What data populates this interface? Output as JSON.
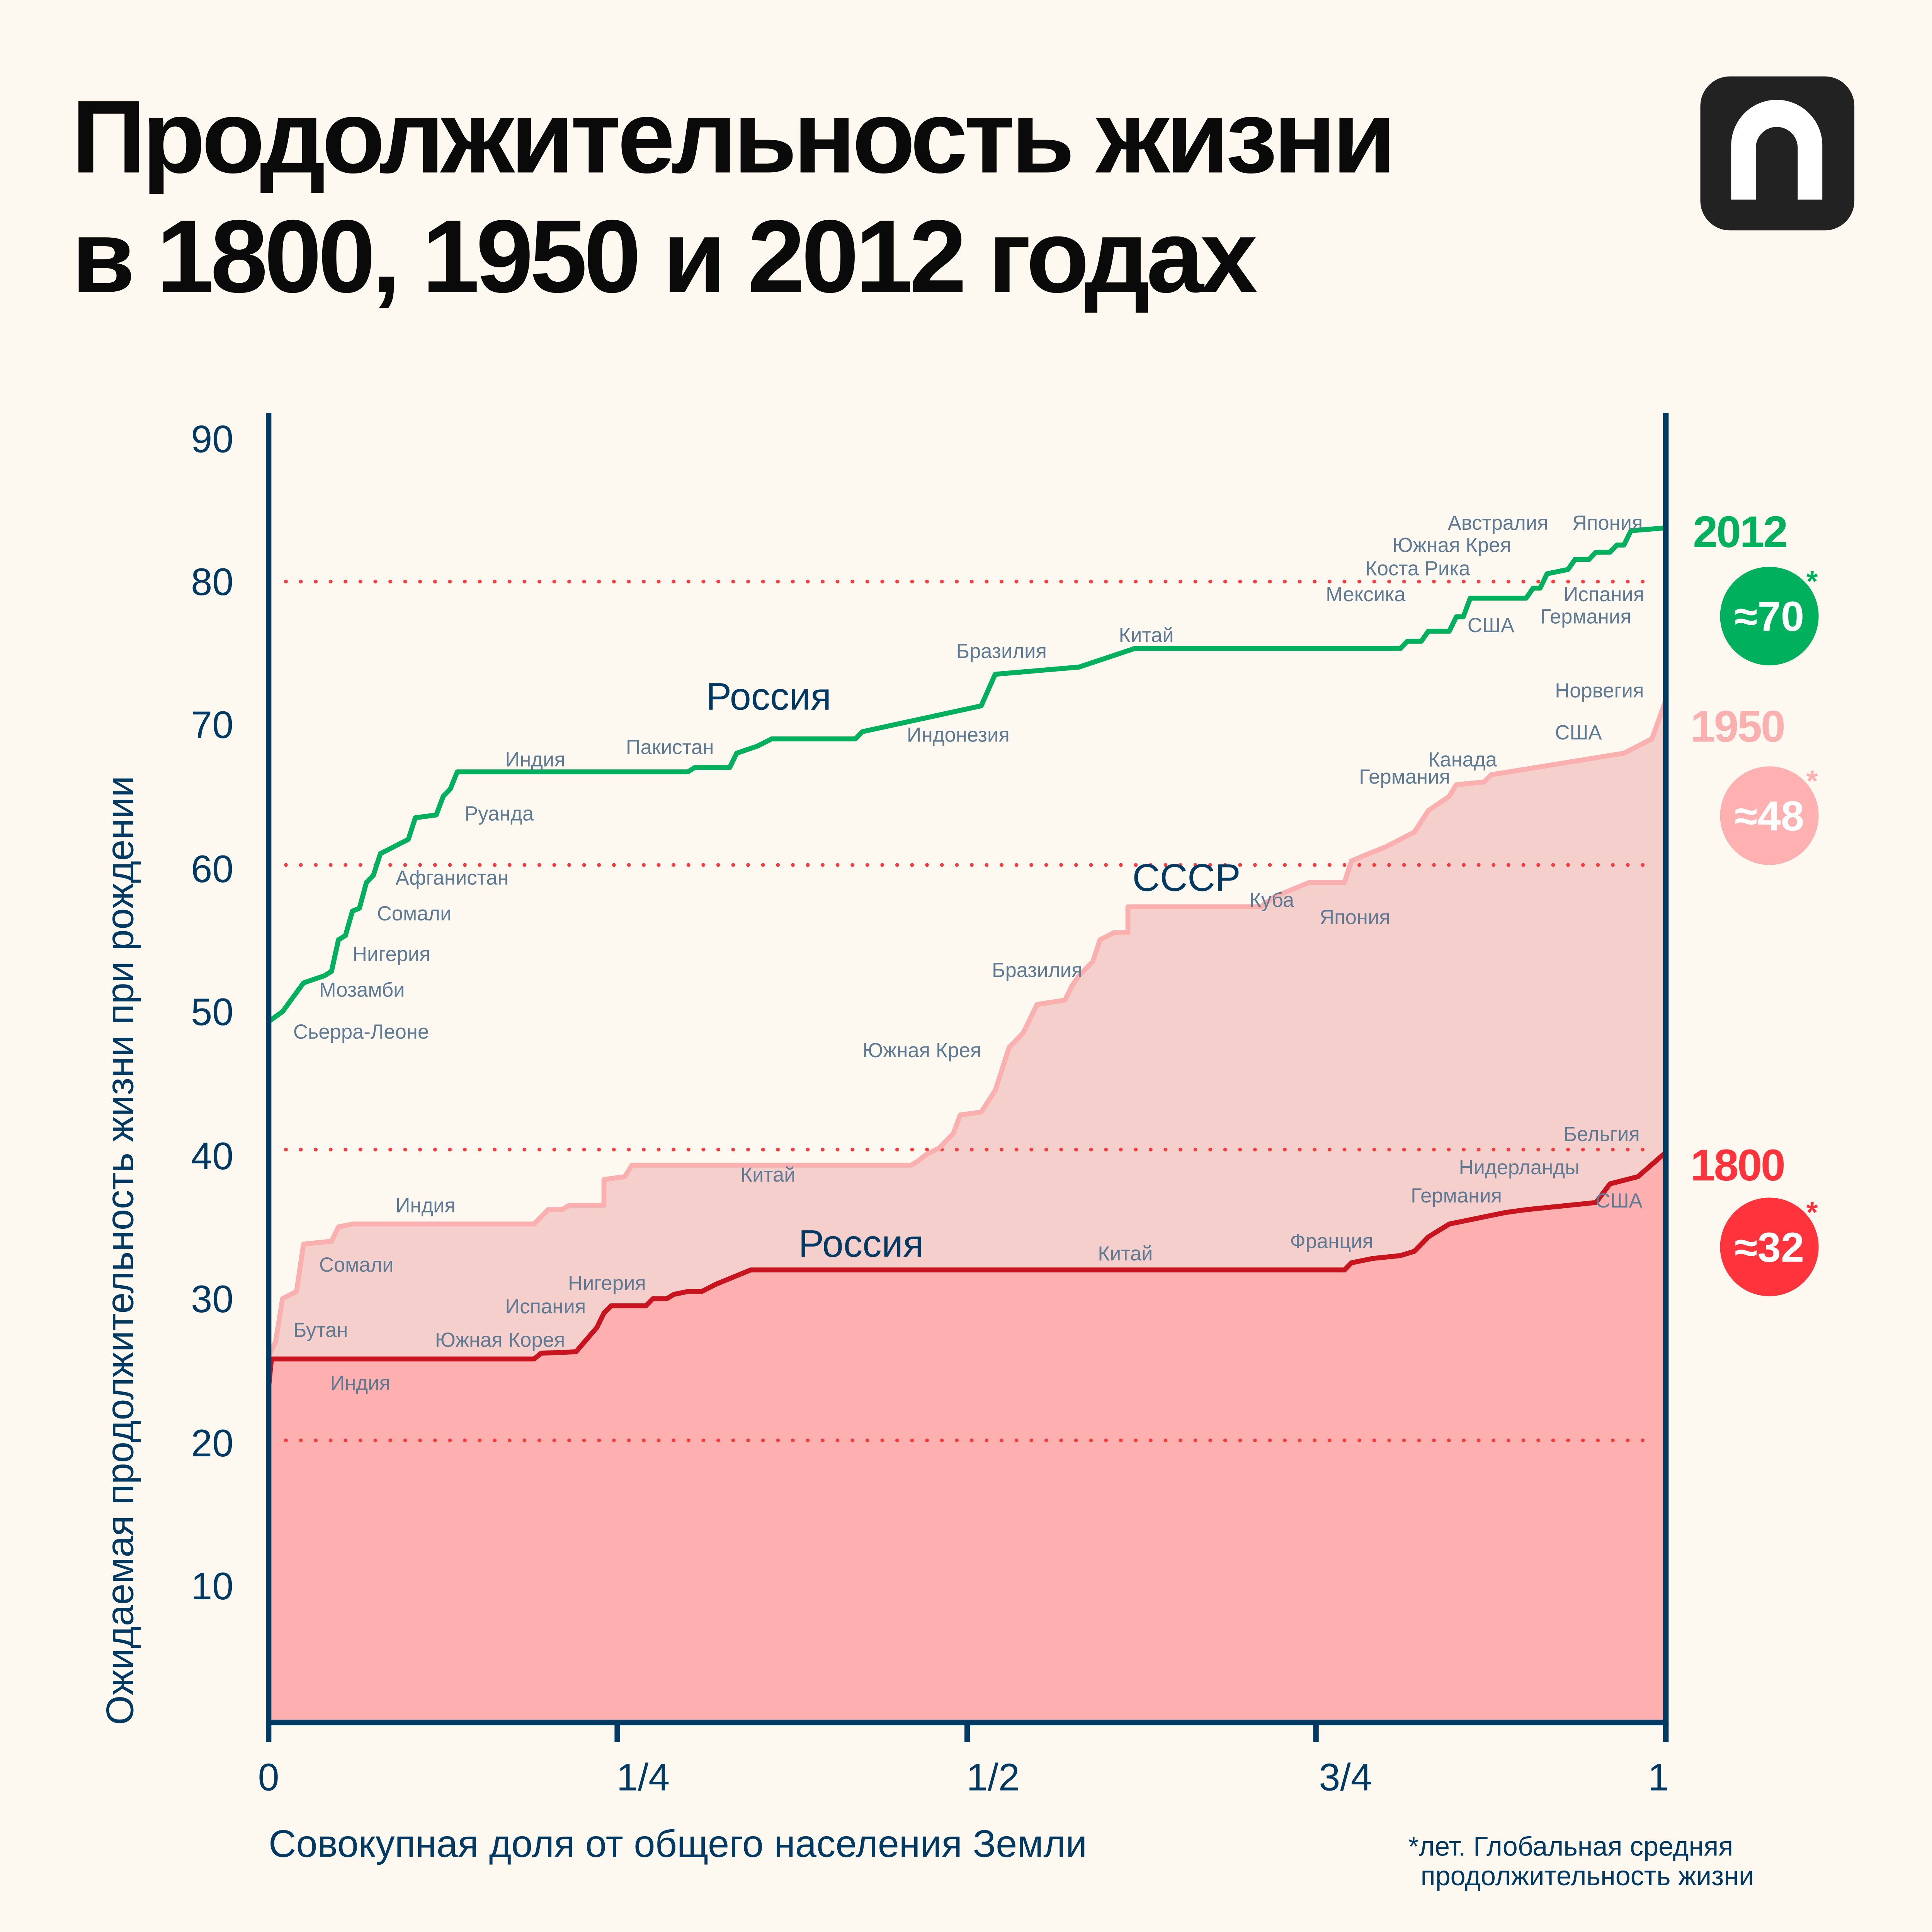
{
  "title": {
    "line1": "Продолжительность жизни",
    "line2": "в 1800, 1950 и 2012 годах"
  },
  "logo": {
    "name": "n-logo-icon",
    "bg": "#222222"
  },
  "chart_data": {
    "type": "line",
    "xlabel": "Совокупная доля от общего населения Земли",
    "ylabel": "Ожидаемая продолжительность жизни при рождении",
    "xlim": [
      0,
      1
    ],
    "ylim": [
      0,
      90
    ],
    "x_ticks": [
      "0",
      "1/4",
      "1/2",
      "3/4",
      "1"
    ],
    "y_ticks": [
      "10",
      "20",
      "30",
      "40",
      "50",
      "60",
      "70",
      "80",
      "90"
    ],
    "grid": "dotted horizontal at 20, 40, 60, 80",
    "series": [
      {
        "name": "2012",
        "color": "#00b05c",
        "average": "≈70",
        "points": [
          [
            0,
            49.3
          ],
          [
            0.01,
            50
          ],
          [
            0.025,
            52
          ],
          [
            0.04,
            52.5
          ],
          [
            0.045,
            52.8
          ],
          [
            0.05,
            55
          ],
          [
            0.055,
            55.3
          ],
          [
            0.06,
            57
          ],
          [
            0.065,
            57.2
          ],
          [
            0.07,
            59
          ],
          [
            0.075,
            59.5
          ],
          [
            0.08,
            61
          ],
          [
            0.09,
            61.5
          ],
          [
            0.1,
            62
          ],
          [
            0.105,
            63.5
          ],
          [
            0.12,
            63.7
          ],
          [
            0.125,
            65
          ],
          [
            0.13,
            65.5
          ],
          [
            0.135,
            66.7
          ],
          [
            0.3,
            66.7
          ],
          [
            0.305,
            67
          ],
          [
            0.33,
            67
          ],
          [
            0.335,
            68
          ],
          [
            0.35,
            68.5
          ],
          [
            0.36,
            69
          ],
          [
            0.42,
            69
          ],
          [
            0.425,
            69.5
          ],
          [
            0.51,
            71.3
          ],
          [
            0.52,
            73.5
          ],
          [
            0.58,
            74
          ],
          [
            0.62,
            75.3
          ],
          [
            0.81,
            75.3
          ],
          [
            0.815,
            75.8
          ],
          [
            0.825,
            75.8
          ],
          [
            0.83,
            76.5
          ],
          [
            0.845,
            76.5
          ],
          [
            0.85,
            77.5
          ],
          [
            0.855,
            77.5
          ],
          [
            0.86,
            78.8
          ],
          [
            0.9,
            78.8
          ],
          [
            0.905,
            79.5
          ],
          [
            0.91,
            79.5
          ],
          [
            0.915,
            80.5
          ],
          [
            0.93,
            80.8
          ],
          [
            0.935,
            81.5
          ],
          [
            0.945,
            81.5
          ],
          [
            0.95,
            82
          ],
          [
            0.96,
            82
          ],
          [
            0.965,
            82.5
          ],
          [
            0.97,
            82.5
          ],
          [
            0.975,
            83.5
          ],
          [
            1,
            83.7
          ]
        ],
        "labels": [
          "Сьерра-Леоне",
          "Мозамби",
          "Нигерия",
          "Сомали",
          "Афганистан",
          "Руанда",
          "Индия",
          "Пакистан",
          "Россия",
          "Индонезия",
          "Бразилия",
          "Китай",
          "Мексика",
          "Коста Рика",
          "Южная Крея",
          "Австралия",
          "Япония",
          "США",
          "Испания",
          "Германия"
        ]
      },
      {
        "name": "1950",
        "color": "#fbb0b0",
        "fill": "#f5cfcb",
        "average": "≈48",
        "points": [
          [
            0,
            26
          ],
          [
            0.005,
            27
          ],
          [
            0.01,
            30
          ],
          [
            0.02,
            30.5
          ],
          [
            0.025,
            33.8
          ],
          [
            0.045,
            34
          ],
          [
            0.05,
            35
          ],
          [
            0.06,
            35.2
          ],
          [
            0.19,
            35.2
          ],
          [
            0.2,
            36.2
          ],
          [
            0.21,
            36.2
          ],
          [
            0.215,
            36.5
          ],
          [
            0.24,
            36.5
          ],
          [
            0.24,
            38.3
          ],
          [
            0.255,
            38.5
          ],
          [
            0.26,
            39.3
          ],
          [
            0.46,
            39.3
          ],
          [
            0.465,
            39.6
          ],
          [
            0.47,
            40
          ],
          [
            0.48,
            40.5
          ],
          [
            0.49,
            41.5
          ],
          [
            0.495,
            42.8
          ],
          [
            0.51,
            43
          ],
          [
            0.52,
            44.5
          ],
          [
            0.525,
            46
          ],
          [
            0.53,
            47.5
          ],
          [
            0.54,
            48.5
          ],
          [
            0.55,
            50.5
          ],
          [
            0.57,
            50.8
          ],
          [
            0.575,
            51.8
          ],
          [
            0.58,
            52.5
          ],
          [
            0.59,
            53.5
          ],
          [
            0.595,
            55
          ],
          [
            0.605,
            55.5
          ],
          [
            0.615,
            55.5
          ],
          [
            0.615,
            57.3
          ],
          [
            0.71,
            57.3
          ],
          [
            0.72,
            58
          ],
          [
            0.745,
            59
          ],
          [
            0.77,
            59
          ],
          [
            0.775,
            60.5
          ],
          [
            0.8,
            61.5
          ],
          [
            0.82,
            62.5
          ],
          [
            0.83,
            64
          ],
          [
            0.845,
            65
          ],
          [
            0.85,
            65.8
          ],
          [
            0.87,
            66
          ],
          [
            0.875,
            66.5
          ],
          [
            0.97,
            68
          ],
          [
            0.99,
            69
          ],
          [
            1,
            71.7
          ]
        ],
        "labels": [
          "Норвегия",
          "США",
          "Канада",
          "Германия",
          "СССР",
          "Куба",
          "Япония",
          "Бразилия",
          "Южная Крея",
          "Китай",
          "Индия",
          "Сомали",
          "Бутан"
        ]
      },
      {
        "name": "1800",
        "color": "#c8141e",
        "fill": "#feb0b0",
        "average": "≈32",
        "points": [
          [
            0,
            23.8
          ],
          [
            0.002,
            25.8
          ],
          [
            0.19,
            25.8
          ],
          [
            0.195,
            26.2
          ],
          [
            0.22,
            26.3
          ],
          [
            0.235,
            28
          ],
          [
            0.24,
            29
          ],
          [
            0.245,
            29.5
          ],
          [
            0.27,
            29.5
          ],
          [
            0.275,
            30
          ],
          [
            0.285,
            30
          ],
          [
            0.29,
            30.3
          ],
          [
            0.3,
            30.5
          ],
          [
            0.31,
            30.5
          ],
          [
            0.32,
            31
          ],
          [
            0.345,
            32
          ],
          [
            0.77,
            32
          ],
          [
            0.775,
            32.5
          ],
          [
            0.79,
            32.8
          ],
          [
            0.81,
            33
          ],
          [
            0.82,
            33.3
          ],
          [
            0.83,
            34.3
          ],
          [
            0.845,
            35.2
          ],
          [
            0.86,
            35.5
          ],
          [
            0.875,
            35.8
          ],
          [
            0.885,
            36
          ],
          [
            0.9,
            36.2
          ],
          [
            0.95,
            36.7
          ],
          [
            0.96,
            38
          ],
          [
            0.98,
            38.5
          ],
          [
            1,
            40.2
          ]
        ],
        "labels": [
          "Индия",
          "Южная Корея",
          "Испания",
          "Нигерия",
          "Россия",
          "Китай",
          "Франция",
          "Германия",
          "Нидерланды",
          "Бельгия",
          "США"
        ]
      }
    ],
    "badge_colors": {
      "2012": "#00b05c",
      "1950": "#ffb0b0",
      "1800": "#ff333c"
    },
    "footnote": {
      "line1": "*лет. Глобальная средняя",
      "line2": "продолжительность жизни"
    }
  }
}
